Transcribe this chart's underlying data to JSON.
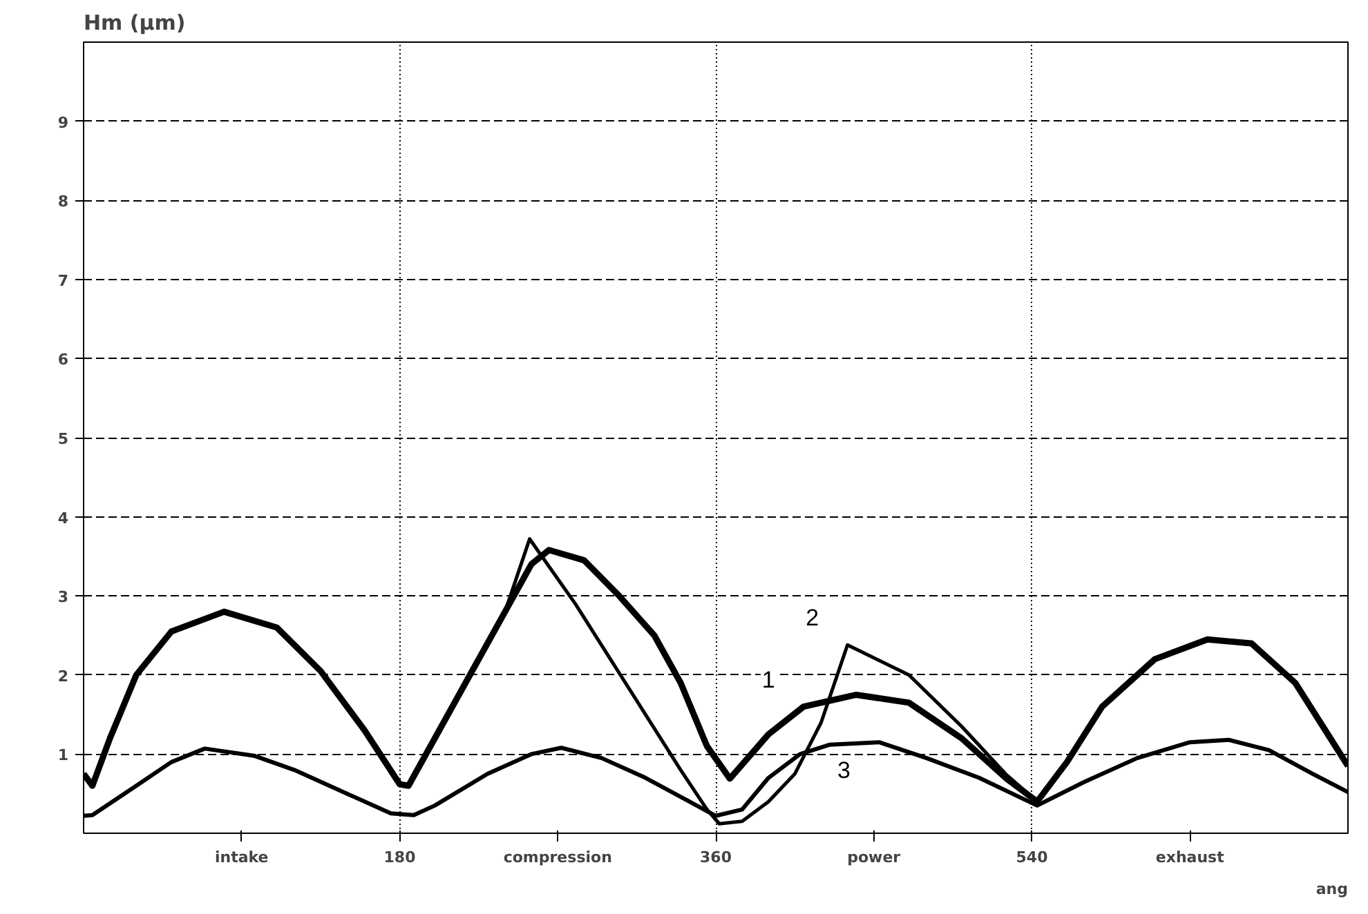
{
  "chart_data": {
    "type": "line",
    "ylabel": "Hm (μm)",
    "xlabel": "ang",
    "xlim": [
      0,
      720
    ],
    "ylim": [
      0,
      10
    ],
    "xticks": [
      {
        "value": 90,
        "label": "intake"
      },
      180,
      {
        "value": 270,
        "label": "compression"
      },
      360,
      {
        "value": 450,
        "label": "power"
      },
      540,
      {
        "value": 630,
        "label": "exhaust"
      }
    ],
    "yticks": [
      1,
      2,
      3,
      4,
      5,
      6,
      7,
      8,
      9
    ],
    "grid": true,
    "legend": false,
    "marker": "none",
    "line_style": "solid",
    "series": [
      {
        "name": "1",
        "color": "#000000",
        "x": [
          0,
          5,
          15,
          30,
          50,
          80,
          110,
          135,
          160,
          180,
          185,
          200,
          220,
          240,
          255,
          265,
          285,
          305,
          325,
          340,
          355,
          368,
          390,
          410,
          440,
          470,
          500,
          525,
          543,
          560,
          580,
          610,
          640,
          665,
          690,
          710,
          720
        ],
        "values": [
          0.75,
          0.6,
          1.2,
          2.0,
          2.55,
          2.8,
          2.6,
          2.05,
          1.3,
          0.62,
          0.6,
          1.2,
          2.0,
          2.8,
          3.4,
          3.58,
          3.45,
          3.0,
          2.5,
          1.9,
          1.1,
          0.69,
          1.25,
          1.6,
          1.75,
          1.65,
          1.2,
          0.7,
          0.4,
          0.9,
          1.6,
          2.2,
          2.45,
          2.4,
          1.9,
          1.2,
          0.85
        ]
      },
      {
        "name": "2",
        "color": "#000000",
        "x": [
          0,
          5,
          15,
          30,
          50,
          80,
          110,
          135,
          160,
          180,
          185,
          200,
          220,
          240,
          254,
          280,
          300,
          320,
          340,
          355,
          362,
          375,
          390,
          405,
          420,
          435,
          470,
          500,
          525,
          543,
          560,
          580,
          610,
          640,
          665,
          690,
          710,
          720
        ],
        "values": [
          0.75,
          0.6,
          1.2,
          2.0,
          2.55,
          2.8,
          2.6,
          2.05,
          1.3,
          0.62,
          0.6,
          1.2,
          2.0,
          2.8,
          3.72,
          2.9,
          2.2,
          1.5,
          0.8,
          0.3,
          0.12,
          0.15,
          0.4,
          0.75,
          1.4,
          2.38,
          2.0,
          1.35,
          0.75,
          0.4,
          0.9,
          1.6,
          2.2,
          2.45,
          2.4,
          1.9,
          1.2,
          0.85
        ]
      },
      {
        "name": "3",
        "color": "#000000",
        "x": [
          0,
          5,
          30,
          50,
          69,
          97,
          120,
          150,
          175,
          188,
          200,
          230,
          255,
          272,
          295,
          320,
          345,
          360,
          375,
          390,
          408,
          425,
          453,
          480,
          510,
          543,
          570,
          600,
          630,
          652,
          675,
          700,
          720
        ],
        "values": [
          0.22,
          0.23,
          0.6,
          0.9,
          1.07,
          0.98,
          0.8,
          0.5,
          0.25,
          0.23,
          0.35,
          0.75,
          1.0,
          1.08,
          0.95,
          0.7,
          0.4,
          0.22,
          0.3,
          0.7,
          1.0,
          1.12,
          1.15,
          0.95,
          0.7,
          0.35,
          0.65,
          0.95,
          1.15,
          1.18,
          1.05,
          0.75,
          0.52
        ]
      }
    ]
  }
}
